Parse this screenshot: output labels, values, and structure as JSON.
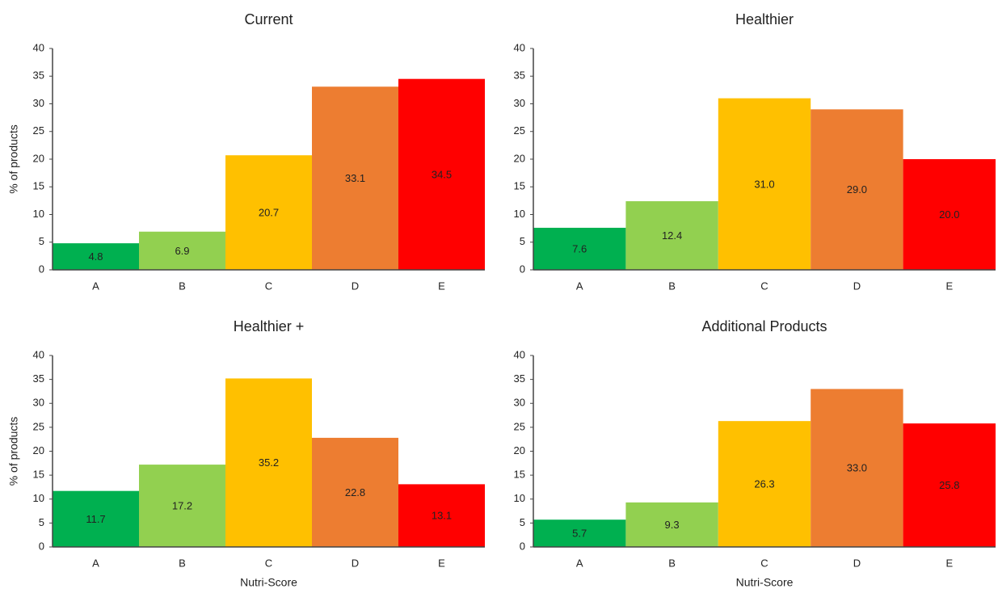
{
  "chart_data": [
    {
      "type": "bar",
      "title": "Current",
      "y_label": "% of products",
      "categories": [
        "A",
        "B",
        "C",
        "D",
        "E"
      ],
      "values": [
        4.8,
        6.9,
        20.7,
        33.1,
        34.5
      ],
      "colors": [
        "#00b050",
        "#92d050",
        "#ffc000",
        "#ed7d31",
        "#ff0000"
      ],
      "ylim": [
        0,
        40
      ],
      "yticks": [
        0,
        5,
        10,
        15,
        20,
        25,
        30,
        35,
        40
      ]
    },
    {
      "type": "bar",
      "title": "Healthier",
      "categories": [
        "A",
        "B",
        "C",
        "D",
        "E"
      ],
      "values": [
        7.6,
        12.4,
        31.0,
        29.0,
        20.0
      ],
      "value_labels": [
        "7.6",
        "12.4",
        "31.0",
        "29.0",
        "20.0"
      ],
      "colors": [
        "#00b050",
        "#92d050",
        "#ffc000",
        "#ed7d31",
        "#ff0000"
      ],
      "ylim": [
        0,
        40
      ],
      "yticks": [
        0,
        5,
        10,
        15,
        20,
        25,
        30,
        35,
        40
      ]
    },
    {
      "type": "bar",
      "title": "Healthier +",
      "y_label": "% of products",
      "x_label": "Nutri-Score",
      "categories": [
        "A",
        "B",
        "C",
        "D",
        "E"
      ],
      "values": [
        11.7,
        17.2,
        35.2,
        22.8,
        13.1
      ],
      "colors": [
        "#00b050",
        "#92d050",
        "#ffc000",
        "#ed7d31",
        "#ff0000"
      ],
      "ylim": [
        0,
        40
      ],
      "yticks": [
        0,
        5,
        10,
        15,
        20,
        25,
        30,
        35,
        40
      ]
    },
    {
      "type": "bar",
      "title": "Additional Products",
      "x_label": "Nutri-Score",
      "categories": [
        "A",
        "B",
        "C",
        "D",
        "E"
      ],
      "values": [
        5.7,
        9.3,
        26.3,
        33.0,
        25.8
      ],
      "value_labels": [
        "5.7",
        "9.3",
        "26.3",
        "33.0",
        "25.8"
      ],
      "colors": [
        "#00b050",
        "#92d050",
        "#ffc000",
        "#ed7d31",
        "#ff0000"
      ],
      "ylim": [
        0,
        40
      ],
      "yticks": [
        0,
        5,
        10,
        15,
        20,
        25,
        30,
        35,
        40
      ]
    }
  ]
}
